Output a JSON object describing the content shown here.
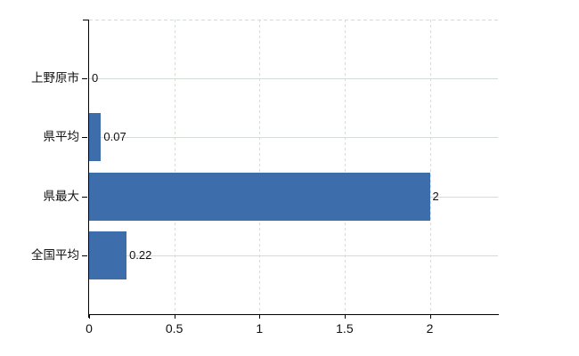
{
  "chart_data": {
    "type": "bar",
    "orientation": "horizontal",
    "title": "",
    "categories": [
      "上野原市",
      "県平均",
      "県最大",
      "全国平均"
    ],
    "values": [
      0,
      0.07,
      2,
      0.22
    ],
    "value_labels": [
      "0",
      "0.07",
      "2",
      "0.22"
    ],
    "x_axis": {
      "ticks": [
        0,
        0.5,
        1,
        1.5,
        2
      ],
      "tick_labels": [
        "0",
        "0.5",
        "1",
        "1.5",
        "2"
      ],
      "range": [
        0,
        2.4
      ]
    },
    "y_axis": {
      "label": ""
    },
    "grid": true,
    "legend": false,
    "colors": {
      "bar": "#3e6dab",
      "grid": "#d5dcd5",
      "axis": "#000000",
      "text": "#111111",
      "background": "#ffffff"
    }
  }
}
